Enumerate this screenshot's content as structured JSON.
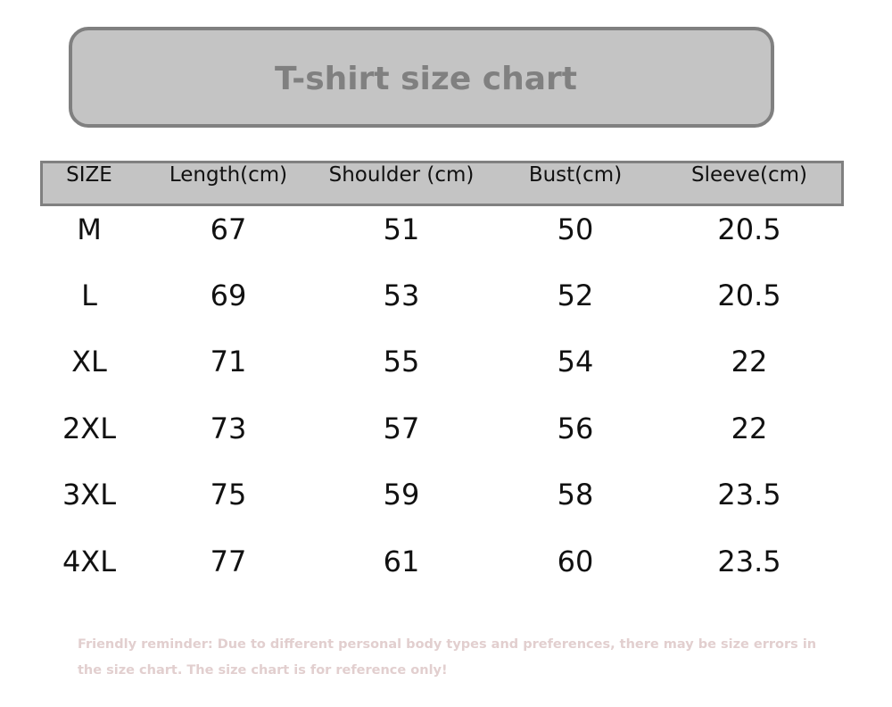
{
  "title": "T-shirt size chart",
  "table": {
    "headers": [
      "SIZE",
      "Length(cm)",
      "Shoulder (cm)",
      "Bust(cm)",
      "Sleeve(cm)"
    ],
    "rows": [
      [
        "M",
        "67",
        "51",
        "50",
        "20.5"
      ],
      [
        "L",
        "69",
        "53",
        "52",
        "20.5"
      ],
      [
        "XL",
        "71",
        "55",
        "54",
        "22"
      ],
      [
        "2XL",
        "73",
        "57",
        "56",
        "22"
      ],
      [
        "3XL",
        "75",
        "59",
        "58",
        "23.5"
      ],
      [
        "4XL",
        "77",
        "61",
        "60",
        "23.5"
      ]
    ]
  },
  "note": "Friendly reminder: Due to different personal body types and preferences, there may be size errors in the size chart. The size chart is for reference only!",
  "colors": {
    "panel": "#c4c4c4",
    "border": "#808080",
    "note": "#e2cfcf"
  }
}
